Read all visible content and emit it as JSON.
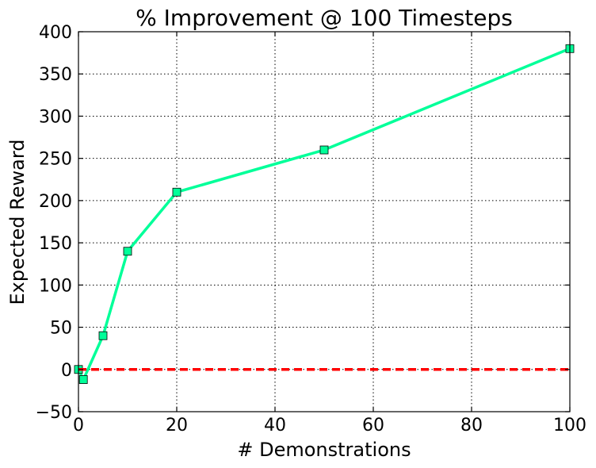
{
  "chart_data": {
    "type": "line",
    "title": "% Improvement @ 100 Timesteps",
    "xlabel": "# Demonstrations",
    "ylabel": "Expected Reward",
    "xlim": [
      0,
      100
    ],
    "ylim": [
      -50,
      400
    ],
    "xticks": [
      0,
      20,
      40,
      60,
      80,
      100
    ],
    "yticks": [
      -50,
      0,
      50,
      100,
      150,
      200,
      250,
      300,
      350,
      400
    ],
    "grid": true,
    "series": [
      {
        "x": [
          0,
          1,
          5,
          10,
          20,
          50,
          100
        ],
        "y": [
          0,
          -12,
          40,
          140,
          210,
          260,
          380
        ],
        "color": "#00ff99",
        "marker": "square",
        "line_style": "solid"
      },
      {
        "x": [
          0,
          100
        ],
        "y": [
          0,
          0
        ],
        "color": "#ff0000",
        "marker": "none",
        "line_style": "dashed"
      }
    ]
  }
}
